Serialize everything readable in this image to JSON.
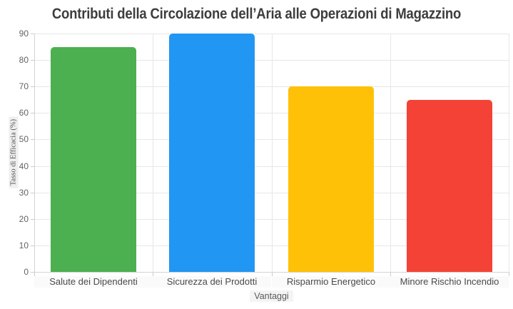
{
  "title": "Contributi della Circolazione dell’Aria alle Operazioni di Magazzino",
  "chart_data": {
    "type": "bar",
    "title": "Contributi della Circolazione dell’Aria alle Operazioni di Magazzino",
    "categories": [
      "Salute dei Dipendenti",
      "Sicurezza dei Prodotti",
      "Risparmio Energetico",
      "Minore Rischio Incendio"
    ],
    "values": [
      85,
      90,
      70,
      65
    ],
    "bar_colors": [
      "#4CAF50",
      "#2196F3",
      "#FFC107",
      "#F44336"
    ],
    "xlabel": "Vantaggi",
    "ylabel": "Tasso di Efficacia (%)",
    "ylim": [
      0,
      90
    ],
    "yticks": [
      0,
      10,
      20,
      30,
      40,
      50,
      60,
      70,
      80,
      90
    ],
    "grid": true,
    "legend_position": "none"
  }
}
